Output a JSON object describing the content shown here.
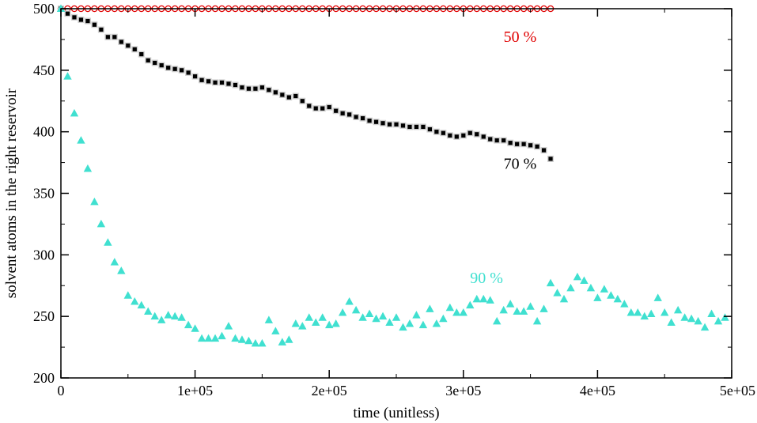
{
  "chart_data": {
    "type": "scatter",
    "xlabel": "time (unitless)",
    "ylabel": "solvent atoms in the right reservoir",
    "xlim": [
      0,
      500000
    ],
    "ylim": [
      200,
      500
    ],
    "xticks": [
      0,
      100000,
      200000,
      300000,
      400000,
      500000
    ],
    "xtick_labels": [
      "0",
      "1e+05",
      "2e+05",
      "3e+05",
      "4e+05",
      "5e+05"
    ],
    "yticks": [
      200,
      250,
      300,
      350,
      400,
      450,
      500
    ],
    "ytick_labels": [
      "200",
      "250",
      "300",
      "350",
      "400",
      "450",
      "500"
    ],
    "grid": false,
    "series": [
      {
        "name": "50 %",
        "marker": "circle-open",
        "color": "#e00000",
        "label_at": [
          330000,
          473
        ],
        "x": [
          0,
          5000,
          10000,
          15000,
          20000,
          25000,
          30000,
          35000,
          40000,
          45000,
          50000,
          55000,
          60000,
          65000,
          70000,
          75000,
          80000,
          85000,
          90000,
          95000,
          100000,
          105000,
          110000,
          115000,
          120000,
          125000,
          130000,
          135000,
          140000,
          145000,
          150000,
          155000,
          160000,
          165000,
          170000,
          175000,
          180000,
          185000,
          190000,
          195000,
          200000,
          205000,
          210000,
          215000,
          220000,
          225000,
          230000,
          235000,
          240000,
          245000,
          250000,
          255000,
          260000,
          265000,
          270000,
          275000,
          280000,
          285000,
          290000,
          295000,
          300000,
          305000,
          310000,
          315000,
          320000,
          325000,
          330000,
          335000,
          340000,
          345000,
          350000,
          355000,
          360000,
          365000
        ],
        "y": [
          500,
          500,
          500,
          500,
          500,
          500,
          500,
          500,
          500,
          500,
          500,
          500,
          500,
          500,
          500,
          500,
          500,
          500,
          500,
          500,
          500,
          500,
          500,
          500,
          500,
          500,
          500,
          500,
          500,
          500,
          500,
          500,
          500,
          500,
          500,
          500,
          500,
          500,
          500,
          500,
          500,
          500,
          500,
          500,
          500,
          500,
          500,
          500,
          500,
          500,
          500,
          500,
          500,
          500,
          500,
          500,
          500,
          500,
          500,
          500,
          500,
          500,
          500,
          500,
          500,
          500,
          500,
          500,
          500,
          500,
          500,
          500,
          500,
          500
        ]
      },
      {
        "name": "70 %",
        "marker": "square",
        "color": "#000000",
        "label_at": [
          330000,
          370
        ],
        "x": [
          0,
          5000,
          10000,
          15000,
          20000,
          25000,
          30000,
          35000,
          40000,
          45000,
          50000,
          55000,
          60000,
          65000,
          70000,
          75000,
          80000,
          85000,
          90000,
          95000,
          100000,
          105000,
          110000,
          115000,
          120000,
          125000,
          130000,
          135000,
          140000,
          145000,
          150000,
          155000,
          160000,
          165000,
          170000,
          175000,
          180000,
          185000,
          190000,
          195000,
          200000,
          205000,
          210000,
          215000,
          220000,
          225000,
          230000,
          235000,
          240000,
          245000,
          250000,
          255000,
          260000,
          265000,
          270000,
          275000,
          280000,
          285000,
          290000,
          295000,
          300000,
          305000,
          310000,
          315000,
          320000,
          325000,
          330000,
          335000,
          340000,
          345000,
          350000,
          355000,
          360000,
          365000
        ],
        "y": [
          500,
          496,
          493,
          491,
          490,
          487,
          483,
          477,
          477,
          473,
          470,
          467,
          463,
          458,
          456,
          454,
          452,
          451,
          450,
          448,
          445,
          442,
          441,
          440,
          440,
          439,
          438,
          436,
          435,
          435,
          436,
          434,
          432,
          430,
          428,
          429,
          425,
          421,
          419,
          419,
          420,
          417,
          415,
          414,
          412,
          411,
          409,
          408,
          407,
          406,
          406,
          405,
          404,
          404,
          404,
          402,
          400,
          399,
          397,
          396,
          397,
          399,
          398,
          396,
          394,
          393,
          393,
          391,
          390,
          390,
          389,
          388,
          385,
          378
        ]
      },
      {
        "name": "90 %",
        "marker": "triangle",
        "color": "#40e0d0",
        "label_at": [
          305000,
          277
        ],
        "x": [
          0,
          5000,
          10000,
          15000,
          20000,
          25000,
          30000,
          35000,
          40000,
          45000,
          50000,
          55000,
          60000,
          65000,
          70000,
          75000,
          80000,
          85000,
          90000,
          95000,
          100000,
          105000,
          110000,
          115000,
          120000,
          125000,
          130000,
          135000,
          140000,
          145000,
          150000,
          155000,
          160000,
          165000,
          170000,
          175000,
          180000,
          185000,
          190000,
          195000,
          200000,
          205000,
          210000,
          215000,
          220000,
          225000,
          230000,
          235000,
          240000,
          245000,
          250000,
          255000,
          260000,
          265000,
          270000,
          275000,
          280000,
          285000,
          290000,
          295000,
          300000,
          305000,
          310000,
          315000,
          320000,
          325000,
          330000,
          335000,
          340000,
          345000,
          350000,
          355000,
          360000,
          365000,
          370000,
          375000,
          380000,
          385000,
          390000,
          395000,
          400000,
          405000,
          410000,
          415000,
          420000,
          425000,
          430000,
          435000,
          440000,
          445000,
          450000,
          455000,
          460000,
          465000,
          470000,
          475000,
          480000,
          485000,
          490000,
          495000
        ],
        "y": [
          500,
          445,
          415,
          393,
          370,
          343,
          325,
          310,
          294,
          287,
          267,
          262,
          259,
          254,
          250,
          247,
          251,
          250,
          249,
          243,
          240,
          232,
          232,
          232,
          234,
          242,
          232,
          231,
          230,
          228,
          228,
          247,
          238,
          229,
          231,
          244,
          242,
          249,
          245,
          249,
          243,
          244,
          253,
          262,
          255,
          249,
          252,
          248,
          250,
          245,
          249,
          241,
          244,
          251,
          243,
          256,
          244,
          248,
          257,
          253,
          253,
          259,
          264,
          264,
          263,
          246,
          255,
          260,
          254,
          254,
          258,
          246,
          256,
          277,
          269,
          264,
          273,
          282,
          279,
          273,
          265,
          272,
          267,
          264,
          260,
          253,
          253,
          250,
          252,
          265,
          253,
          245,
          255,
          249,
          248,
          246,
          241,
          252,
          246,
          249
        ]
      }
    ]
  }
}
